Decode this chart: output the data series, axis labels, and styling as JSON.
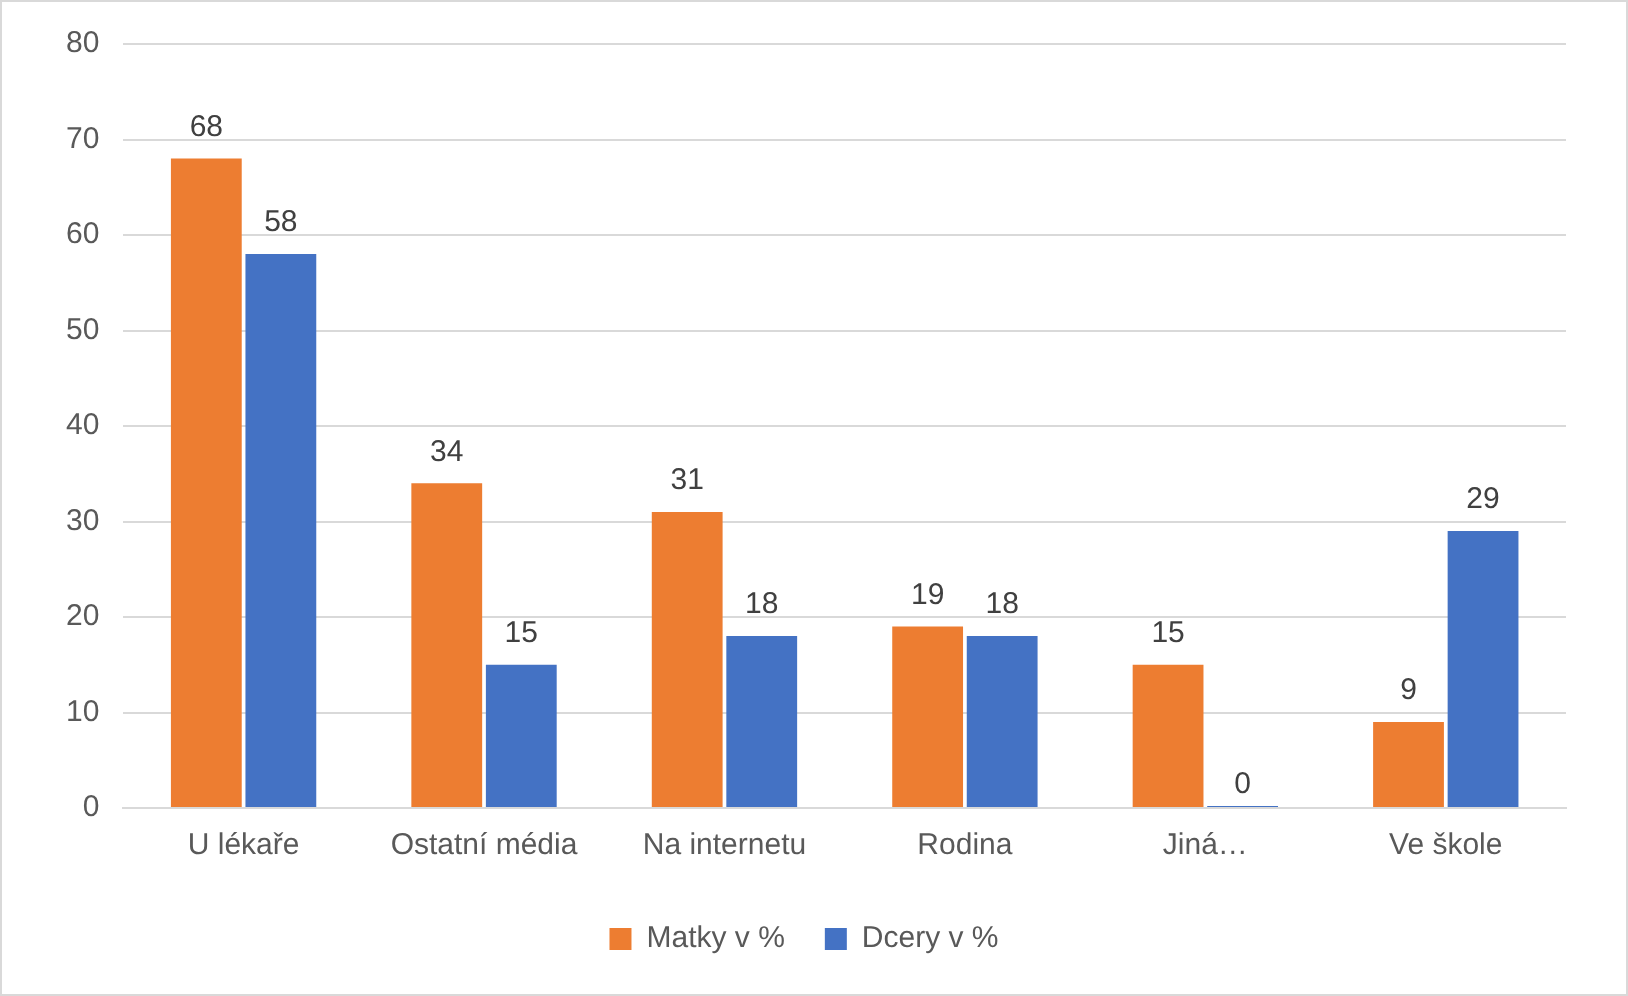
{
  "chart_data": {
    "type": "bar",
    "categories": [
      "U lékaře",
      "Ostatní média",
      "Na internetu",
      "Rodina",
      "Jiná…",
      "Ve škole"
    ],
    "series": [
      {
        "name": "Matky v %",
        "color": "#ed7d31",
        "values": [
          68,
          34,
          31,
          19,
          15,
          9
        ]
      },
      {
        "name": "Dcery v %",
        "color": "#4472c4",
        "values": [
          58,
          15,
          18,
          18,
          0,
          29
        ]
      }
    ],
    "ylim": [
      0,
      80
    ],
    "yticks": [
      0,
      10,
      20,
      30,
      40,
      50,
      60,
      70,
      80
    ],
    "grid": "y",
    "legend": "bottom",
    "data_labels": true
  }
}
